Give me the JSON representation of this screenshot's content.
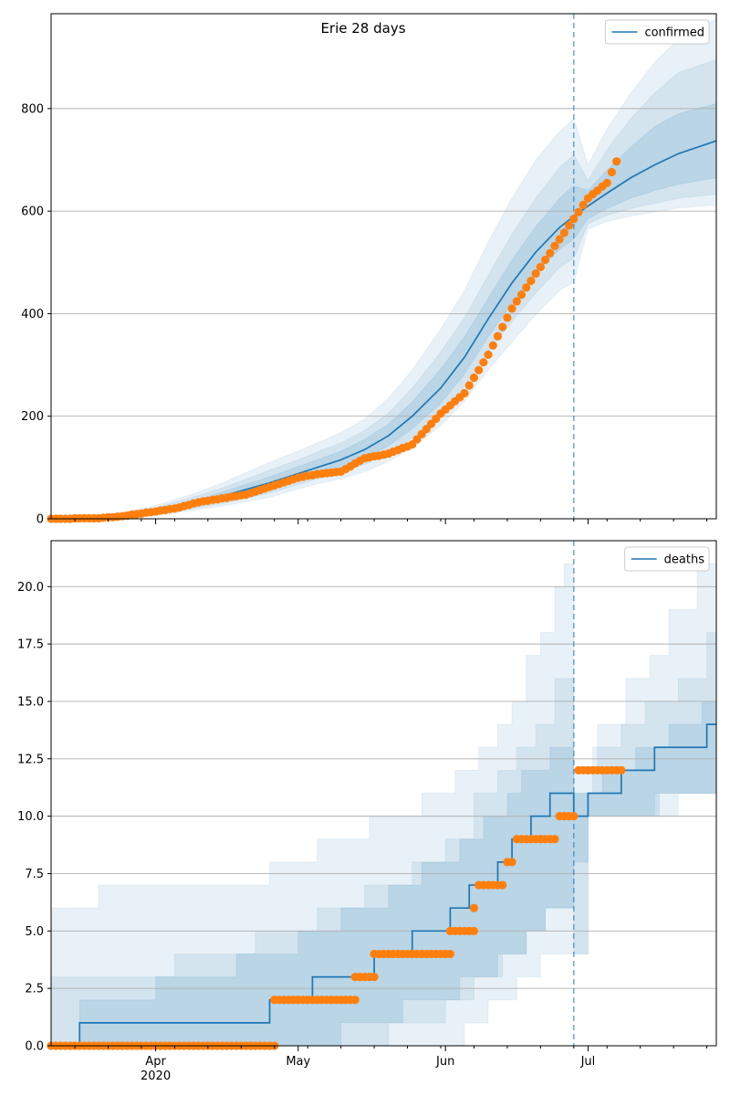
{
  "figure": {
    "title": "Erie 28 days"
  },
  "colors": {
    "line": "#1f77b4",
    "obs": "#ff7f0e",
    "band": "#1f77b4",
    "vline": "#1f77b4",
    "grid": "#b0b0b0"
  },
  "chart_data": [
    {
      "type": "line",
      "name": "confirmed-panel",
      "legend": [
        "confirmed"
      ],
      "legend_position": "top-right",
      "grid": "y",
      "x_range": [
        "2020-03-10",
        "2020-07-28"
      ],
      "ylim": [
        0,
        985
      ],
      "yticks": [
        0,
        200,
        400,
        600,
        800
      ],
      "vline_date": "2020-06-28",
      "model": {
        "x": [
          "2020-03-10",
          "2020-03-20",
          "2020-03-25",
          "2020-03-31",
          "2020-04-05",
          "2020-04-10",
          "2020-04-15",
          "2020-04-20",
          "2020-04-25",
          "2020-05-01",
          "2020-05-05",
          "2020-05-10",
          "2020-05-15",
          "2020-05-20",
          "2020-05-25",
          "2020-05-31",
          "2020-06-05",
          "2020-06-10",
          "2020-06-15",
          "2020-06-20",
          "2020-06-25",
          "2020-06-28",
          "2020-07-01",
          "2020-07-05",
          "2020-07-10",
          "2020-07-15",
          "2020-07-20",
          "2020-07-28"
        ],
        "median": [
          0,
          3,
          7,
          13,
          22,
          32,
          44,
          57,
          70,
          88,
          100,
          115,
          135,
          162,
          200,
          255,
          315,
          390,
          460,
          520,
          568,
          590,
          610,
          635,
          665,
          690,
          712,
          737
        ],
        "bands": [
          {
            "lower": [
              0,
              2,
              5,
              10,
              17,
              26,
              36,
              47,
              58,
              75,
              86,
              100,
              118,
              142,
              175,
              225,
              282,
              355,
              420,
              478,
              525,
              545,
              585,
              605,
              625,
              640,
              652,
              665
            ],
            "upper": [
              0,
              4,
              9,
              16,
              27,
              38,
              52,
              67,
              82,
              102,
              115,
              132,
              155,
              185,
              228,
              292,
              355,
              430,
              505,
              570,
              625,
              650,
              640,
              680,
              725,
              765,
              790,
              810
            ]
          },
          {
            "lower": [
              0,
              1,
              4,
              8,
              14,
              22,
              30,
              40,
              50,
              67,
              78,
              90,
              106,
              128,
              158,
              205,
              258,
              325,
              385,
              440,
              490,
              508,
              575,
              592,
              605,
              615,
              625,
              633
            ],
            "upper": [
              0,
              5,
              11,
              19,
              32,
              45,
              60,
              77,
              95,
              115,
              130,
              148,
              172,
              206,
              255,
              325,
              392,
              475,
              555,
              625,
              685,
              710,
              660,
              720,
              780,
              830,
              870,
              895
            ]
          },
          {
            "lower": [
              0,
              1,
              3,
              6,
              11,
              18,
              25,
              33,
              42,
              58,
              68,
              78,
              92,
              112,
              138,
              182,
              230,
              290,
              345,
              398,
              445,
              462,
              565,
              580,
              590,
              598,
              606,
              612
            ],
            "upper": [
              0,
              6,
              13,
              23,
              37,
              52,
              70,
              90,
              110,
              132,
              148,
              168,
              195,
              235,
              290,
              370,
              445,
              540,
              625,
              700,
              755,
              780,
              690,
              760,
              830,
              890,
              935,
              975
            ]
          }
        ]
      },
      "observed": {
        "series_name": "observed",
        "start": "2020-03-10",
        "end": "2020-07-07",
        "anchors": [
          [
            "2020-03-10",
            0
          ],
          [
            "2020-03-20",
            1
          ],
          [
            "2020-03-25",
            5
          ],
          [
            "2020-03-31",
            13
          ],
          [
            "2020-04-05",
            20
          ],
          [
            "2020-04-10",
            32
          ],
          [
            "2020-04-15",
            40
          ],
          [
            "2020-04-20",
            47
          ],
          [
            "2020-04-25",
            62
          ],
          [
            "2020-05-01",
            80
          ],
          [
            "2020-05-05",
            87
          ],
          [
            "2020-05-10",
            92
          ],
          [
            "2020-05-15",
            118
          ],
          [
            "2020-05-20",
            127
          ],
          [
            "2020-05-25",
            145
          ],
          [
            "2020-05-31",
            205
          ],
          [
            "2020-06-05",
            245
          ],
          [
            "2020-06-10",
            320
          ],
          [
            "2020-06-15",
            410
          ],
          [
            "2020-06-20",
            478
          ],
          [
            "2020-06-25",
            545
          ],
          [
            "2020-06-28",
            585
          ],
          [
            "2020-07-01",
            625
          ],
          [
            "2020-07-05",
            655
          ],
          [
            "2020-07-07",
            697
          ]
        ]
      }
    },
    {
      "type": "line",
      "name": "deaths-panel",
      "legend": [
        "deaths"
      ],
      "legend_position": "top-right",
      "grid": "y",
      "x_range": [
        "2020-03-10",
        "2020-07-28"
      ],
      "ylim": [
        0,
        22
      ],
      "yticks": [
        "0.0",
        "2.5",
        "5.0",
        "7.5",
        "10.0",
        "12.5",
        "15.0",
        "17.5",
        "20.0"
      ],
      "xticks": [
        {
          "date": "2020-04-01",
          "label": "Apr",
          "sub": "2020"
        },
        {
          "date": "2020-05-01",
          "label": "May"
        },
        {
          "date": "2020-06-01",
          "label": "Jun"
        },
        {
          "date": "2020-07-01",
          "label": "Jul"
        }
      ],
      "vline_date": "2020-06-28",
      "model": {
        "median": [
          [
            "2020-03-10",
            0
          ],
          [
            "2020-03-16",
            1
          ],
          [
            "2020-04-25",
            2
          ],
          [
            "2020-05-04",
            3
          ],
          [
            "2020-05-17",
            4
          ],
          [
            "2020-05-25",
            5
          ],
          [
            "2020-06-02",
            6
          ],
          [
            "2020-06-06",
            7
          ],
          [
            "2020-06-12",
            8
          ],
          [
            "2020-06-15",
            9
          ],
          [
            "2020-06-19",
            10
          ],
          [
            "2020-06-23",
            11
          ],
          [
            "2020-06-28",
            10
          ],
          [
            "2020-07-01",
            11
          ],
          [
            "2020-07-08",
            12
          ],
          [
            "2020-07-15",
            13
          ],
          [
            "2020-07-26",
            14
          ]
        ],
        "bands": [
          {
            "lower": [
              [
                "2020-03-10",
                0
              ],
              [
                "2020-04-25",
                0
              ],
              [
                "2020-05-10",
                1
              ],
              [
                "2020-05-23",
                2
              ],
              [
                "2020-06-04",
                3
              ],
              [
                "2020-06-12",
                4
              ],
              [
                "2020-06-18",
                5
              ],
              [
                "2020-06-22",
                6
              ],
              [
                "2020-06-28",
                8
              ],
              [
                "2020-07-01",
                10
              ],
              [
                "2020-07-16",
                11
              ],
              [
                "2020-07-28",
                12
              ]
            ],
            "upper": [
              [
                "2020-03-10",
                0
              ],
              [
                "2020-03-16",
                2
              ],
              [
                "2020-04-01",
                3
              ],
              [
                "2020-04-18",
                4
              ],
              [
                "2020-05-01",
                5
              ],
              [
                "2020-05-10",
                6
              ],
              [
                "2020-05-20",
                7
              ],
              [
                "2020-05-27",
                8
              ],
              [
                "2020-06-04",
                9
              ],
              [
                "2020-06-09",
                10
              ],
              [
                "2020-06-14",
                11
              ],
              [
                "2020-06-17",
                12
              ],
              [
                "2020-06-23",
                13
              ],
              [
                "2020-06-28",
                11
              ],
              [
                "2020-07-04",
                12
              ],
              [
                "2020-07-11",
                13
              ],
              [
                "2020-07-18",
                14
              ],
              [
                "2020-07-25",
                15
              ]
            ]
          },
          {
            "lower": [
              [
                "2020-03-10",
                0
              ],
              [
                "2020-05-05",
                0
              ],
              [
                "2020-05-20",
                1
              ],
              [
                "2020-06-01",
                2
              ],
              [
                "2020-06-07",
                3
              ],
              [
                "2020-06-13",
                4
              ],
              [
                "2020-06-18",
                5
              ],
              [
                "2020-06-22",
                6
              ],
              [
                "2020-06-28",
                4
              ],
              [
                "2020-07-01",
                10
              ],
              [
                "2020-07-15",
                11
              ]
            ],
            "upper": [
              [
                "2020-03-10",
                0
              ],
              [
                "2020-03-10",
                3
              ],
              [
                "2020-04-05",
                4
              ],
              [
                "2020-04-22",
                5
              ],
              [
                "2020-05-05",
                6
              ],
              [
                "2020-05-15",
                7
              ],
              [
                "2020-05-25",
                8
              ],
              [
                "2020-06-01",
                9
              ],
              [
                "2020-06-07",
                11
              ],
              [
                "2020-06-12",
                12
              ],
              [
                "2020-06-16",
                13
              ],
              [
                "2020-06-20",
                14
              ],
              [
                "2020-06-24",
                16
              ],
              [
                "2020-06-28",
                11
              ],
              [
                "2020-07-02",
                13
              ],
              [
                "2020-07-08",
                14
              ],
              [
                "2020-07-13",
                15
              ],
              [
                "2020-07-20",
                16
              ],
              [
                "2020-07-26",
                18
              ]
            ]
          },
          {
            "lower": [
              [
                "2020-03-10",
                0
              ],
              [
                "2020-05-25",
                0
              ],
              [
                "2020-06-05",
                1
              ],
              [
                "2020-06-10",
                2
              ],
              [
                "2020-06-16",
                3
              ],
              [
                "2020-06-21",
                4
              ],
              [
                "2020-06-28",
                4
              ],
              [
                "2020-07-01",
                10
              ],
              [
                "2020-07-20",
                11
              ]
            ],
            "upper": [
              [
                "2020-03-10",
                6
              ],
              [
                "2020-03-20",
                7
              ],
              [
                "2020-04-25",
                8
              ],
              [
                "2020-05-05",
                9
              ],
              [
                "2020-05-16",
                10
              ],
              [
                "2020-05-27",
                11
              ],
              [
                "2020-06-03",
                12
              ],
              [
                "2020-06-08",
                13
              ],
              [
                "2020-06-12",
                14
              ],
              [
                "2020-06-15",
                15
              ],
              [
                "2020-06-18",
                17
              ],
              [
                "2020-06-21",
                18
              ],
              [
                "2020-06-24",
                20
              ],
              [
                "2020-06-26",
                21
              ],
              [
                "2020-06-28",
                12
              ],
              [
                "2020-07-03",
                14
              ],
              [
                "2020-07-09",
                16
              ],
              [
                "2020-07-14",
                17
              ],
              [
                "2020-07-18",
                19
              ],
              [
                "2020-07-24",
                21
              ]
            ]
          }
        ]
      },
      "observed": {
        "series_name": "observed",
        "segments": [
          {
            "from": "2020-03-10",
            "to": "2020-04-26",
            "value": 0
          },
          {
            "from": "2020-04-26",
            "to": "2020-05-13",
            "value": 2
          },
          {
            "from": "2020-05-13",
            "to": "2020-05-17",
            "value": 3
          },
          {
            "from": "2020-05-17",
            "to": "2020-06-02",
            "value": 4
          },
          {
            "from": "2020-06-02",
            "to": "2020-06-07",
            "value": 5
          },
          {
            "from": "2020-06-07",
            "to": "2020-06-07",
            "value": 6
          },
          {
            "from": "2020-06-08",
            "to": "2020-06-13",
            "value": 7
          },
          {
            "from": "2020-06-14",
            "to": "2020-06-15",
            "value": 8
          },
          {
            "from": "2020-06-16",
            "to": "2020-06-24",
            "value": 9
          },
          {
            "from": "2020-06-25",
            "to": "2020-06-28",
            "value": 10
          },
          {
            "from": "2020-06-29",
            "to": "2020-07-08",
            "value": 12
          }
        ]
      }
    }
  ]
}
